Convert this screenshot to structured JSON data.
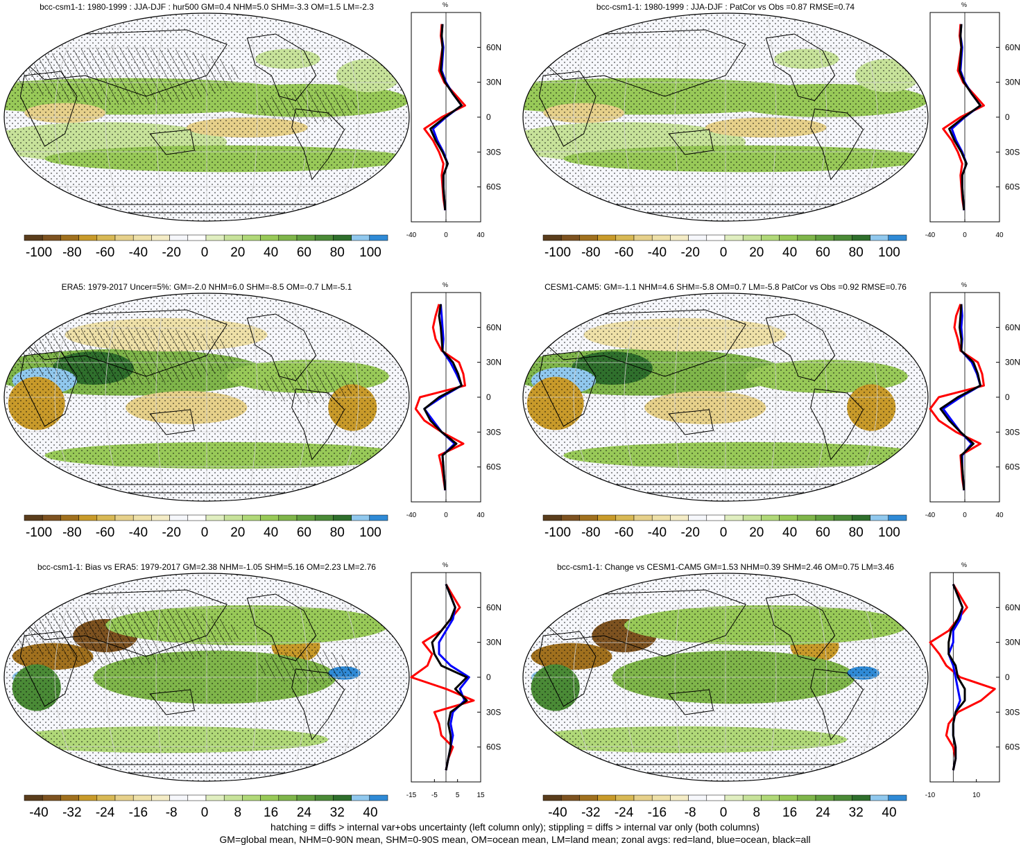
{
  "colors": {
    "palette_neg": [
      "#5a3d1c",
      "#7d5220",
      "#a0701e",
      "#c89a2a",
      "#d8b855",
      "#e6d08a",
      "#eee0a8",
      "#f4ecc6"
    ],
    "palette_mid": [
      "#f6f7fb",
      "#ffffff"
    ],
    "palette_pos": [
      "#e0eec0",
      "#c7e29a",
      "#b0d878",
      "#98c958",
      "#7fb54a",
      "#62a03e",
      "#4a8a36",
      "#2f6f2c",
      "#90c8ee",
      "#2f8ad6"
    ],
    "land_line": "#ff0000",
    "ocean_line": "#0000ff",
    "all_line": "#000000",
    "coast": "#000000",
    "grid": "#d0d0d0"
  },
  "icons": [
    "world-map-robinson",
    "hatching-pattern",
    "stipple-pattern"
  ],
  "footnotes": {
    "line1": "hatching = diffs > internal var+obs uncertainty (left column only); stippling = diffs > internal var only (both columns)",
    "line2": "GM=global mean, NHM=0-90N mean, SHM=0-90S mean, OM=ocean mean, LM=land mean; zonal avgs: red=land, blue=ocean, black=all"
  },
  "chart_data": [
    {
      "type": "heatmap",
      "panel": "top-left",
      "title": "bcc-csm1-1: 1980-1999 : JJA-DJF : hur500 GM=0.4 NHM=5.0 SHM=-3.3 OM=1.5 LM=-2.3",
      "colorbar_ticks": [
        "-100",
        "-80",
        "-60",
        "-40",
        "-20",
        "0",
        "20",
        "40",
        "60",
        "80",
        "100"
      ],
      "zonal_axis_label": "%",
      "zonal_x_ticks": [
        "-40",
        "0",
        "40"
      ],
      "zonal_y_ticks": [
        "60N",
        "30N",
        "0",
        "30S",
        "60S"
      ],
      "zonal_x_range": [
        -40,
        40
      ],
      "lat": [
        80,
        70,
        60,
        50,
        40,
        30,
        20,
        10,
        0,
        -10,
        -20,
        -30,
        -40,
        -50,
        -60,
        -70,
        -80
      ],
      "series": [
        {
          "name": "land",
          "values": [
            -5,
            -6,
            -4,
            -6,
            -8,
            -2,
            10,
            22,
            -5,
            -25,
            -15,
            -8,
            -3,
            -5,
            -4,
            -3,
            -1
          ]
        },
        {
          "name": "ocean",
          "values": [
            -4,
            -5,
            -3,
            -4,
            -5,
            0,
            8,
            18,
            0,
            -15,
            -10,
            -3,
            2,
            -3,
            -3,
            -2,
            -1
          ]
        },
        {
          "name": "all",
          "values": [
            -4,
            -5,
            -4,
            -5,
            -6,
            -1,
            8,
            18,
            -1,
            -18,
            -12,
            -4,
            2,
            -3,
            -3,
            -2,
            -1
          ]
        }
      ]
    },
    {
      "type": "heatmap",
      "panel": "top-right",
      "title": "bcc-csm1-1: 1980-1999 : JJA-DJF : PatCor vs Obs =0.87 RMSE=0.74",
      "colorbar_ticks": [
        "-100",
        "-80",
        "-60",
        "-40",
        "-20",
        "0",
        "20",
        "40",
        "60",
        "80",
        "100"
      ],
      "zonal_axis_label": "%",
      "zonal_x_ticks": [
        "-40",
        "0",
        "40"
      ],
      "zonal_y_ticks": [
        "60N",
        "30N",
        "0",
        "30S",
        "60S"
      ],
      "zonal_x_range": [
        -40,
        40
      ],
      "lat": [
        80,
        70,
        60,
        50,
        40,
        30,
        20,
        10,
        0,
        -10,
        -20,
        -30,
        -40,
        -50,
        -60,
        -70,
        -80
      ],
      "series": [
        {
          "name": "land",
          "values": [
            -5,
            -6,
            -4,
            -6,
            -8,
            -2,
            10,
            22,
            -5,
            -25,
            -15,
            -8,
            -3,
            -5,
            -4,
            -3,
            -1
          ]
        },
        {
          "name": "ocean",
          "values": [
            -4,
            -5,
            -3,
            -4,
            -5,
            0,
            8,
            18,
            0,
            -15,
            -10,
            -3,
            2,
            -3,
            -3,
            -2,
            -1
          ]
        },
        {
          "name": "all",
          "values": [
            -4,
            -5,
            -4,
            -5,
            -6,
            -1,
            8,
            18,
            -1,
            -18,
            -12,
            -4,
            2,
            -3,
            -3,
            -2,
            -1
          ]
        }
      ]
    },
    {
      "type": "heatmap",
      "panel": "middle-left",
      "title": "ERA5: 1979-2017 Uncer=5%: GM=-2.0 NHM=6.0 SHM=-8.5 OM=-0.7 LM=-5.1",
      "colorbar_ticks": [
        "-100",
        "-80",
        "-60",
        "-40",
        "-20",
        "0",
        "20",
        "40",
        "60",
        "80",
        "100"
      ],
      "zonal_axis_label": "%",
      "zonal_x_ticks": [
        "-40",
        "0",
        "40"
      ],
      "zonal_y_ticks": [
        "60N",
        "30N",
        "0",
        "30S",
        "60S"
      ],
      "zonal_x_range": [
        -40,
        40
      ],
      "lat": [
        80,
        70,
        60,
        50,
        40,
        30,
        20,
        10,
        0,
        -10,
        -20,
        -30,
        -40,
        -50,
        -60,
        -70,
        -80
      ],
      "series": [
        {
          "name": "land",
          "values": [
            -8,
            -12,
            -15,
            -12,
            -5,
            15,
            20,
            22,
            -30,
            -35,
            -25,
            -5,
            20,
            -8,
            -5,
            -3,
            -1
          ]
        },
        {
          "name": "ocean",
          "values": [
            -6,
            -5,
            -4,
            -3,
            -4,
            5,
            12,
            18,
            -5,
            -25,
            -15,
            -5,
            10,
            -4,
            -3,
            -2,
            -1
          ]
        },
        {
          "name": "all",
          "values": [
            -6,
            -8,
            -6,
            -5,
            -4,
            8,
            14,
            18,
            -8,
            -25,
            -18,
            -5,
            12,
            -4,
            -3,
            -2,
            -1
          ]
        }
      ]
    },
    {
      "type": "heatmap",
      "panel": "middle-right",
      "title": "CESM1-CAM5: GM=-1.1 NHM=4.6 SHM=-5.8 OM=0.7 LM=-5.8 PatCor vs Obs =0.92 RMSE=0.76",
      "colorbar_ticks": [
        "-100",
        "-80",
        "-60",
        "-40",
        "-20",
        "0",
        "20",
        "40",
        "60",
        "80",
        "100"
      ],
      "zonal_axis_label": "%",
      "zonal_x_ticks": [
        "-40",
        "0",
        "40"
      ],
      "zonal_y_ticks": [
        "60N",
        "30N",
        "0",
        "30S",
        "60S"
      ],
      "zonal_x_range": [
        -40,
        40
      ],
      "lat": [
        80,
        70,
        60,
        50,
        40,
        30,
        20,
        10,
        0,
        -10,
        -20,
        -30,
        -40,
        -50,
        -60,
        -70,
        -80
      ],
      "series": [
        {
          "name": "land",
          "values": [
            -5,
            -10,
            -12,
            -8,
            -5,
            15,
            20,
            22,
            -30,
            -40,
            -30,
            -10,
            18,
            -5,
            -4,
            -3,
            -1
          ]
        },
        {
          "name": "ocean",
          "values": [
            -4,
            -3,
            -4,
            -3,
            -4,
            8,
            14,
            18,
            -5,
            -25,
            -15,
            -5,
            8,
            -3,
            -3,
            -2,
            -1
          ]
        },
        {
          "name": "all",
          "values": [
            -4,
            -5,
            -6,
            -4,
            -4,
            10,
            15,
            18,
            -8,
            -28,
            -18,
            -5,
            10,
            -4,
            -3,
            -2,
            -1
          ]
        }
      ]
    },
    {
      "type": "heatmap",
      "panel": "bottom-left",
      "title": "bcc-csm1-1: Bias vs ERA5: 1979-2017 GM=2.38 NHM=-1.05 SHM=5.16 OM=2.23 LM=2.76",
      "colorbar_ticks": [
        "-40",
        "-32",
        "-24",
        "-16",
        "-8",
        "0",
        "8",
        "16",
        "24",
        "32",
        "40"
      ],
      "zonal_axis_label": "%",
      "zonal_x_ticks": [
        "-15",
        "-5",
        "5",
        "15"
      ],
      "zonal_y_ticks": [
        "60N",
        "30N",
        "0",
        "30S",
        "60S"
      ],
      "zonal_x_range": [
        -15,
        15
      ],
      "lat": [
        80,
        70,
        60,
        50,
        40,
        30,
        20,
        10,
        0,
        -10,
        -20,
        -30,
        -40,
        -50,
        -60,
        -70,
        -80
      ],
      "series": [
        {
          "name": "land",
          "values": [
            0,
            3,
            6,
            2,
            -2,
            -10,
            -6,
            -8,
            -15,
            0,
            12,
            -5,
            -3,
            -2,
            3,
            1,
            0
          ]
        },
        {
          "name": "ocean",
          "values": [
            0,
            2,
            4,
            3,
            0,
            -3,
            -3,
            2,
            10,
            6,
            8,
            3,
            2,
            3,
            2,
            1,
            0
          ]
        },
        {
          "name": "all",
          "values": [
            0,
            2,
            4,
            2,
            -2,
            -6,
            -5,
            -2,
            9,
            4,
            9,
            2,
            1,
            2,
            2,
            1,
            0
          ]
        }
      ]
    },
    {
      "type": "heatmap",
      "panel": "bottom-right",
      "title": "bcc-csm1-1: Change vs CESM1-CAM5 GM=1.53 NHM=0.39 SHM=2.46 OM=0.75 LM=3.46",
      "colorbar_ticks": [
        "-40",
        "-32",
        "-24",
        "-16",
        "-8",
        "0",
        "8",
        "16",
        "24",
        "32",
        "40"
      ],
      "zonal_axis_label": "%",
      "zonal_x_ticks": [
        "-10",
        "10"
      ],
      "zonal_y_ticks": [
        "60N",
        "30N",
        "0",
        "30S",
        "60S"
      ],
      "zonal_x_range": [
        -10,
        20
      ],
      "lat": [
        80,
        70,
        60,
        50,
        40,
        30,
        20,
        10,
        0,
        -10,
        -20,
        -30,
        -40,
        -50,
        -60,
        -70,
        -80
      ],
      "series": [
        {
          "name": "land",
          "values": [
            0,
            3,
            6,
            2,
            -2,
            -10,
            -6,
            -3,
            3,
            18,
            12,
            2,
            -2,
            -3,
            0,
            1,
            0
          ]
        },
        {
          "name": "ocean",
          "values": [
            0,
            2,
            4,
            3,
            0,
            0,
            -2,
            0,
            1,
            2,
            3,
            1,
            0,
            0,
            1,
            1,
            0
          ]
        },
        {
          "name": "all",
          "values": [
            0,
            2,
            4,
            2,
            -1,
            -2,
            -2,
            1,
            2,
            5,
            5,
            1,
            0,
            0,
            1,
            1,
            0
          ]
        }
      ]
    }
  ]
}
